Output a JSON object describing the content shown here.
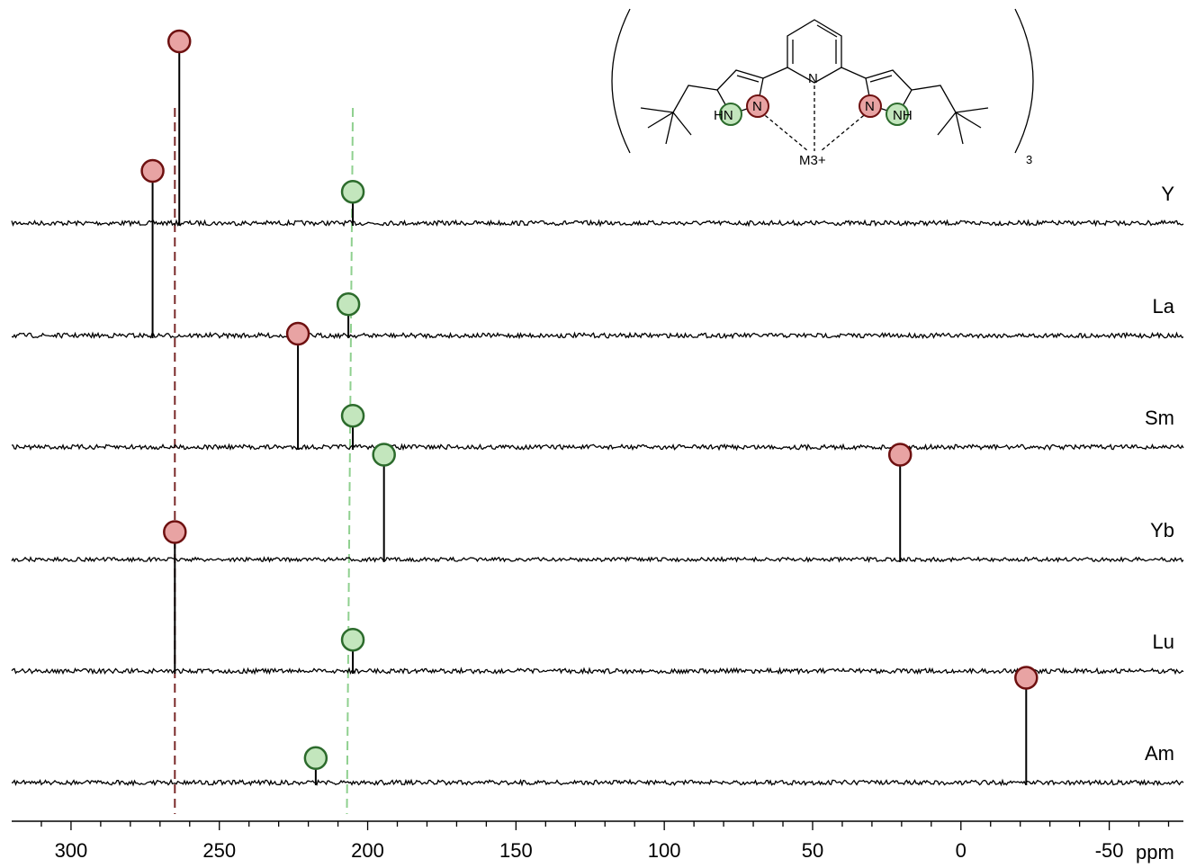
{
  "chart_data": {
    "type": "line",
    "title": "",
    "xlabel": "ppm",
    "ylabel": "",
    "x_reversed": true,
    "xlim": [
      320,
      -75
    ],
    "x_ticks": [
      300,
      250,
      200,
      150,
      100,
      50,
      0,
      -50
    ],
    "grid": false,
    "reference_lines": [
      {
        "marker": "N_coordinating",
        "color": "#7a2a2a",
        "x_top": 265,
        "x_bottom": 265
      },
      {
        "marker": "NH",
        "color": "#8fd08f",
        "x_top": 205,
        "x_bottom": 207
      }
    ],
    "marker_colors": {
      "N_coordinating": {
        "fill": "#e8a3a3",
        "stroke": "#6e1010"
      },
      "NH": {
        "fill": "#c3e6bd",
        "stroke": "#2c6b2c"
      }
    },
    "series": [
      {
        "name": "Y",
        "peaks": [
          {
            "x": 263.5,
            "height": 1.0,
            "marker": "N_coordinating"
          },
          {
            "x": 205,
            "height": 0.12,
            "marker": "NH"
          }
        ]
      },
      {
        "name": "La",
        "peaks": [
          {
            "x": 272.5,
            "height": 0.9,
            "marker": "N_coordinating"
          },
          {
            "x": 206.5,
            "height": 0.12,
            "marker": "NH"
          }
        ]
      },
      {
        "name": "Sm",
        "peaks": [
          {
            "x": 223.5,
            "height": 0.6,
            "marker": "N_coordinating"
          },
          {
            "x": 205,
            "height": 0.12,
            "marker": "NH"
          }
        ]
      },
      {
        "name": "Yb",
        "peaks": [
          {
            "x": 194.5,
            "height": 0.55,
            "marker": "NH"
          },
          {
            "x": 20.5,
            "height": 0.55,
            "marker": "N_coordinating"
          }
        ]
      },
      {
        "name": "Lu",
        "peaks": [
          {
            "x": 265,
            "height": 0.75,
            "marker": "N_coordinating"
          },
          {
            "x": 205,
            "height": 0.12,
            "marker": "NH"
          }
        ]
      },
      {
        "name": "Am",
        "peaks": [
          {
            "x": 217.5,
            "height": 0.08,
            "marker": "NH"
          },
          {
            "x": -22,
            "height": 0.55,
            "marker": "N_coordinating"
          }
        ]
      }
    ]
  },
  "structure": {
    "labels": {
      "n_pyridine": "N",
      "n_left": "N",
      "n_right": "N",
      "hn_left": "HN",
      "nh_right": "NH",
      "metal": "M3+",
      "subscript": "3"
    }
  }
}
